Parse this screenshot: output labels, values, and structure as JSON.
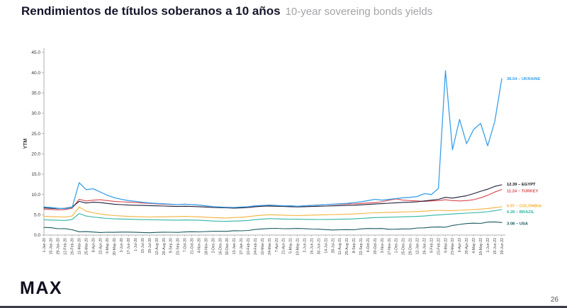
{
  "header": {
    "title_es": "Rendimientos de títulos soberanos a 10 años",
    "title_en": "10-year sovereing bonds yields"
  },
  "footer": {
    "logo": "MAX",
    "page_number": "26"
  },
  "chart_data": {
    "type": "line",
    "title": "Rendimientos de títulos soberanos a 10 años / 10-year sovereing bonds yields",
    "ylabel": "YTM",
    "xlabel": "",
    "ylim": [
      0,
      45
    ],
    "grid": false,
    "legend_position": "right-end-labels",
    "y_ticks": [
      "0.0",
      "5.0",
      "10.0",
      "15.0",
      "20.0",
      "25.0",
      "30.0",
      "35.0",
      "40.0",
      "45.0"
    ],
    "x_labels": [
      "1-Jan-20",
      "15-Jan-20",
      "29-Jan-20",
      "12-Feb-20",
      "26-Feb-20",
      "11-Mar-20",
      "25-Mar-20",
      "8-Apr-20",
      "22-Apr-20",
      "6-May-20",
      "20-May-20",
      "3-Jun-20",
      "17-Jun-20",
      "1-Jul-20",
      "15-Jul-20",
      "29-Jul-20",
      "12-Aug-20",
      "26-Aug-20",
      "9-Sep-20",
      "23-Sep-20",
      "7-Oct-20",
      "21-Oct-20",
      "4-Nov-20",
      "18-Nov-20",
      "2-Dec-20",
      "16-Dec-20",
      "30-Dec-20",
      "13-Jan-21",
      "27-Jan-21",
      "10-Feb-21",
      "24-Feb-21",
      "10-Mar-21",
      "24-Mar-21",
      "7-Apr-21",
      "21-Apr-21",
      "5-May-21",
      "19-May-21",
      "2-Jun-21",
      "16-Jun-21",
      "30-Jun-21",
      "14-Jul-21",
      "28-Jul-21",
      "11-Aug-21",
      "25-Aug-21",
      "8-Sep-21",
      "22-Sep-21",
      "6-Oct-21",
      "20-Oct-21",
      "3-Nov-21",
      "17-Nov-21",
      "1-Dec-21",
      "15-Dec-21",
      "29-Dec-21",
      "12-Jan-22",
      "26-Jan-22",
      "9-Feb-22",
      "23-Feb-22",
      "9-Mar-22",
      "23-Mar-22",
      "6-Apr-22",
      "20-Apr-22",
      "4-May-22",
      "18-May-22",
      "1-Jun-22",
      "15-Jun-22",
      "29-Jun-22"
    ],
    "series": [
      {
        "name": "UKRAINE",
        "color": "#3aa0e8",
        "end_label": "38.54 – UKRAINE",
        "end_value": 38.54,
        "label_dy": 0,
        "values": [
          6.9,
          6.8,
          6.6,
          6.5,
          6.8,
          12.9,
          11.2,
          11.4,
          10.6,
          9.8,
          9.2,
          8.8,
          8.5,
          8.3,
          8.1,
          7.9,
          7.8,
          7.7,
          7.6,
          7.5,
          7.6,
          7.5,
          7.4,
          7.2,
          7.0,
          6.9,
          6.8,
          6.8,
          6.9,
          7.0,
          7.2,
          7.3,
          7.4,
          7.3,
          7.2,
          7.2,
          7.1,
          7.2,
          7.3,
          7.4,
          7.5,
          7.6,
          7.7,
          7.8,
          8.0,
          8.2,
          8.5,
          8.8,
          8.6,
          8.8,
          9.0,
          9.2,
          9.3,
          9.5,
          10.2,
          10.0,
          11.5,
          40.5,
          21.0,
          28.5,
          22.5,
          26.0,
          27.5,
          22.0,
          28.0,
          38.54
        ]
      },
      {
        "name": "EGYPT",
        "color": "#1e1e38",
        "label_color": "#111118",
        "end_label": "12.39 – EGYPT",
        "end_value": 12.39,
        "label_dy": -1,
        "values": [
          6.7,
          6.6,
          6.5,
          6.6,
          6.9,
          8.3,
          7.9,
          8.1,
          8.0,
          7.8,
          7.6,
          7.5,
          7.4,
          7.35,
          7.3,
          7.25,
          7.2,
          7.15,
          7.1,
          7.05,
          7.1,
          7.05,
          7.0,
          6.9,
          6.8,
          6.75,
          6.7,
          6.65,
          6.7,
          6.8,
          7.0,
          7.1,
          7.15,
          7.1,
          7.05,
          7.0,
          6.95,
          7.0,
          7.05,
          7.1,
          7.15,
          7.2,
          7.25,
          7.3,
          7.35,
          7.45,
          7.55,
          7.65,
          7.75,
          7.85,
          7.95,
          8.05,
          8.1,
          8.2,
          8.4,
          8.6,
          8.8,
          9.3,
          9.1,
          9.4,
          9.7,
          10.2,
          10.8,
          11.3,
          12.0,
          12.39
        ]
      },
      {
        "name": "TURKEY",
        "color": "#d9484f",
        "end_label": "11.24 – TURKEY",
        "end_value": 11.24,
        "label_dy": 2,
        "values": [
          6.4,
          6.3,
          6.2,
          6.3,
          6.6,
          8.8,
          8.4,
          8.6,
          8.7,
          8.5,
          8.3,
          8.2,
          8.1,
          8.0,
          7.9,
          7.8,
          7.7,
          7.6,
          7.55,
          7.5,
          7.6,
          7.5,
          7.4,
          7.2,
          7.0,
          6.9,
          6.85,
          6.8,
          6.75,
          6.8,
          7.0,
          7.2,
          7.3,
          7.25,
          7.2,
          7.15,
          7.1,
          7.2,
          7.3,
          7.4,
          7.5,
          7.55,
          7.6,
          7.65,
          7.7,
          7.8,
          7.9,
          8.0,
          8.2,
          8.6,
          8.9,
          8.6,
          8.5,
          8.4,
          8.3,
          8.4,
          8.5,
          8.7,
          8.5,
          8.4,
          8.5,
          8.7,
          9.2,
          9.8,
          10.6,
          11.24
        ]
      },
      {
        "name": "COLOMBIA",
        "color": "#f2b33d",
        "end_label": "6.97 – COLOMBIA",
        "end_value": 6.97,
        "label_dy": -1.5,
        "values": [
          4.6,
          4.55,
          4.5,
          4.45,
          4.7,
          6.9,
          5.9,
          5.5,
          5.2,
          4.95,
          4.8,
          4.7,
          4.6,
          4.55,
          4.5,
          4.45,
          4.5,
          4.5,
          4.55,
          4.55,
          4.6,
          4.55,
          4.5,
          4.4,
          4.3,
          4.25,
          4.2,
          4.3,
          4.4,
          4.55,
          4.75,
          4.9,
          5.0,
          4.95,
          4.9,
          4.85,
          4.8,
          4.85,
          4.9,
          4.95,
          5.0,
          5.05,
          5.1,
          5.15,
          5.2,
          5.3,
          5.4,
          5.5,
          5.55,
          5.6,
          5.65,
          5.7,
          5.75,
          5.8,
          5.9,
          6.0,
          6.1,
          6.05,
          6.0,
          6.1,
          6.2,
          6.3,
          6.4,
          6.55,
          6.75,
          6.97
        ]
      },
      {
        "name": "BRAZIL",
        "color": "#2fb6a3",
        "end_label": "6.28 – BRAZIL",
        "end_value": 6.28,
        "label_dy": 3,
        "values": [
          3.75,
          3.7,
          3.65,
          3.6,
          3.85,
          5.3,
          4.7,
          4.45,
          4.25,
          4.1,
          4.0,
          3.95,
          3.9,
          3.85,
          3.8,
          3.78,
          3.75,
          3.72,
          3.7,
          3.68,
          3.72,
          3.7,
          3.65,
          3.55,
          3.45,
          3.4,
          3.38,
          3.45,
          3.5,
          3.6,
          3.8,
          3.95,
          4.05,
          4.0,
          3.95,
          3.92,
          3.9,
          3.88,
          3.85,
          3.83,
          3.85,
          3.88,
          3.9,
          3.95,
          4.0,
          4.1,
          4.2,
          4.3,
          4.35,
          4.4,
          4.45,
          4.5,
          4.55,
          4.6,
          4.7,
          4.85,
          4.95,
          5.1,
          5.2,
          5.3,
          5.4,
          5.5,
          5.6,
          5.75,
          6.0,
          6.28
        ]
      },
      {
        "name": "USA",
        "color": "#1b5a60",
        "end_label": "3.08 – USA",
        "end_value": 3.08,
        "label_dy": 1,
        "values": [
          1.88,
          1.81,
          1.57,
          1.59,
          1.3,
          0.82,
          0.86,
          0.75,
          0.62,
          0.7,
          0.68,
          0.74,
          0.73,
          0.68,
          0.63,
          0.58,
          0.66,
          0.72,
          0.7,
          0.67,
          0.77,
          0.82,
          0.78,
          0.87,
          0.93,
          0.92,
          0.93,
          1.09,
          1.04,
          1.13,
          1.38,
          1.52,
          1.62,
          1.65,
          1.57,
          1.59,
          1.64,
          1.59,
          1.49,
          1.45,
          1.35,
          1.26,
          1.3,
          1.34,
          1.31,
          1.52,
          1.63,
          1.6,
          1.63,
          1.43,
          1.44,
          1.52,
          1.51,
          1.74,
          1.78,
          1.96,
          1.99,
          1.94,
          2.38,
          2.61,
          2.85,
          2.93,
          2.88,
          3.2,
          3.24,
          3.08
        ]
      }
    ]
  }
}
